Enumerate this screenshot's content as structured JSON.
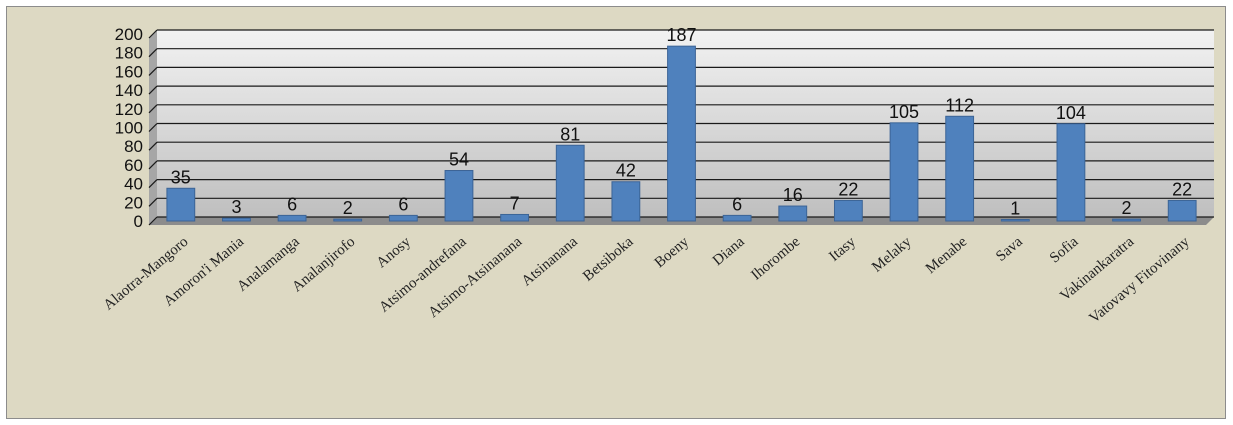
{
  "chart_data": {
    "type": "bar",
    "title": "",
    "xlabel": "",
    "ylabel": "",
    "ylim": [
      0,
      200
    ],
    "yticks": [
      0,
      20,
      40,
      60,
      80,
      100,
      120,
      140,
      160,
      180,
      200
    ],
    "grid": true,
    "legend": "none",
    "categories": [
      "Alaotra-Mangoro",
      "Amoron'i Mania",
      "Analamanga",
      "Analanjirofo",
      "Anosy",
      "Atsimo-andrefana",
      "Atsimo-Atsinanana",
      "Atsinanana",
      "Betsiboka",
      "Boeny",
      "Diana",
      "Ihorombe",
      "Itasy",
      "Melaky",
      "Menabe",
      "Sava",
      "Sofia",
      "Vakinankaratra",
      "Vatovavy Fitovinany"
    ],
    "series": [
      {
        "values": [
          35,
          3,
          6,
          2,
          6,
          54,
          7,
          81,
          42,
          187,
          6,
          16,
          22,
          105,
          112,
          1,
          104,
          2,
          22
        ]
      }
    ],
    "colors": {
      "bar": "#4f81bd",
      "bar_edge": "#3c6496",
      "plot_bg": "#d9d9d9",
      "grid": "#1a1a1a",
      "frame_bg": "#ddd9c3"
    }
  }
}
